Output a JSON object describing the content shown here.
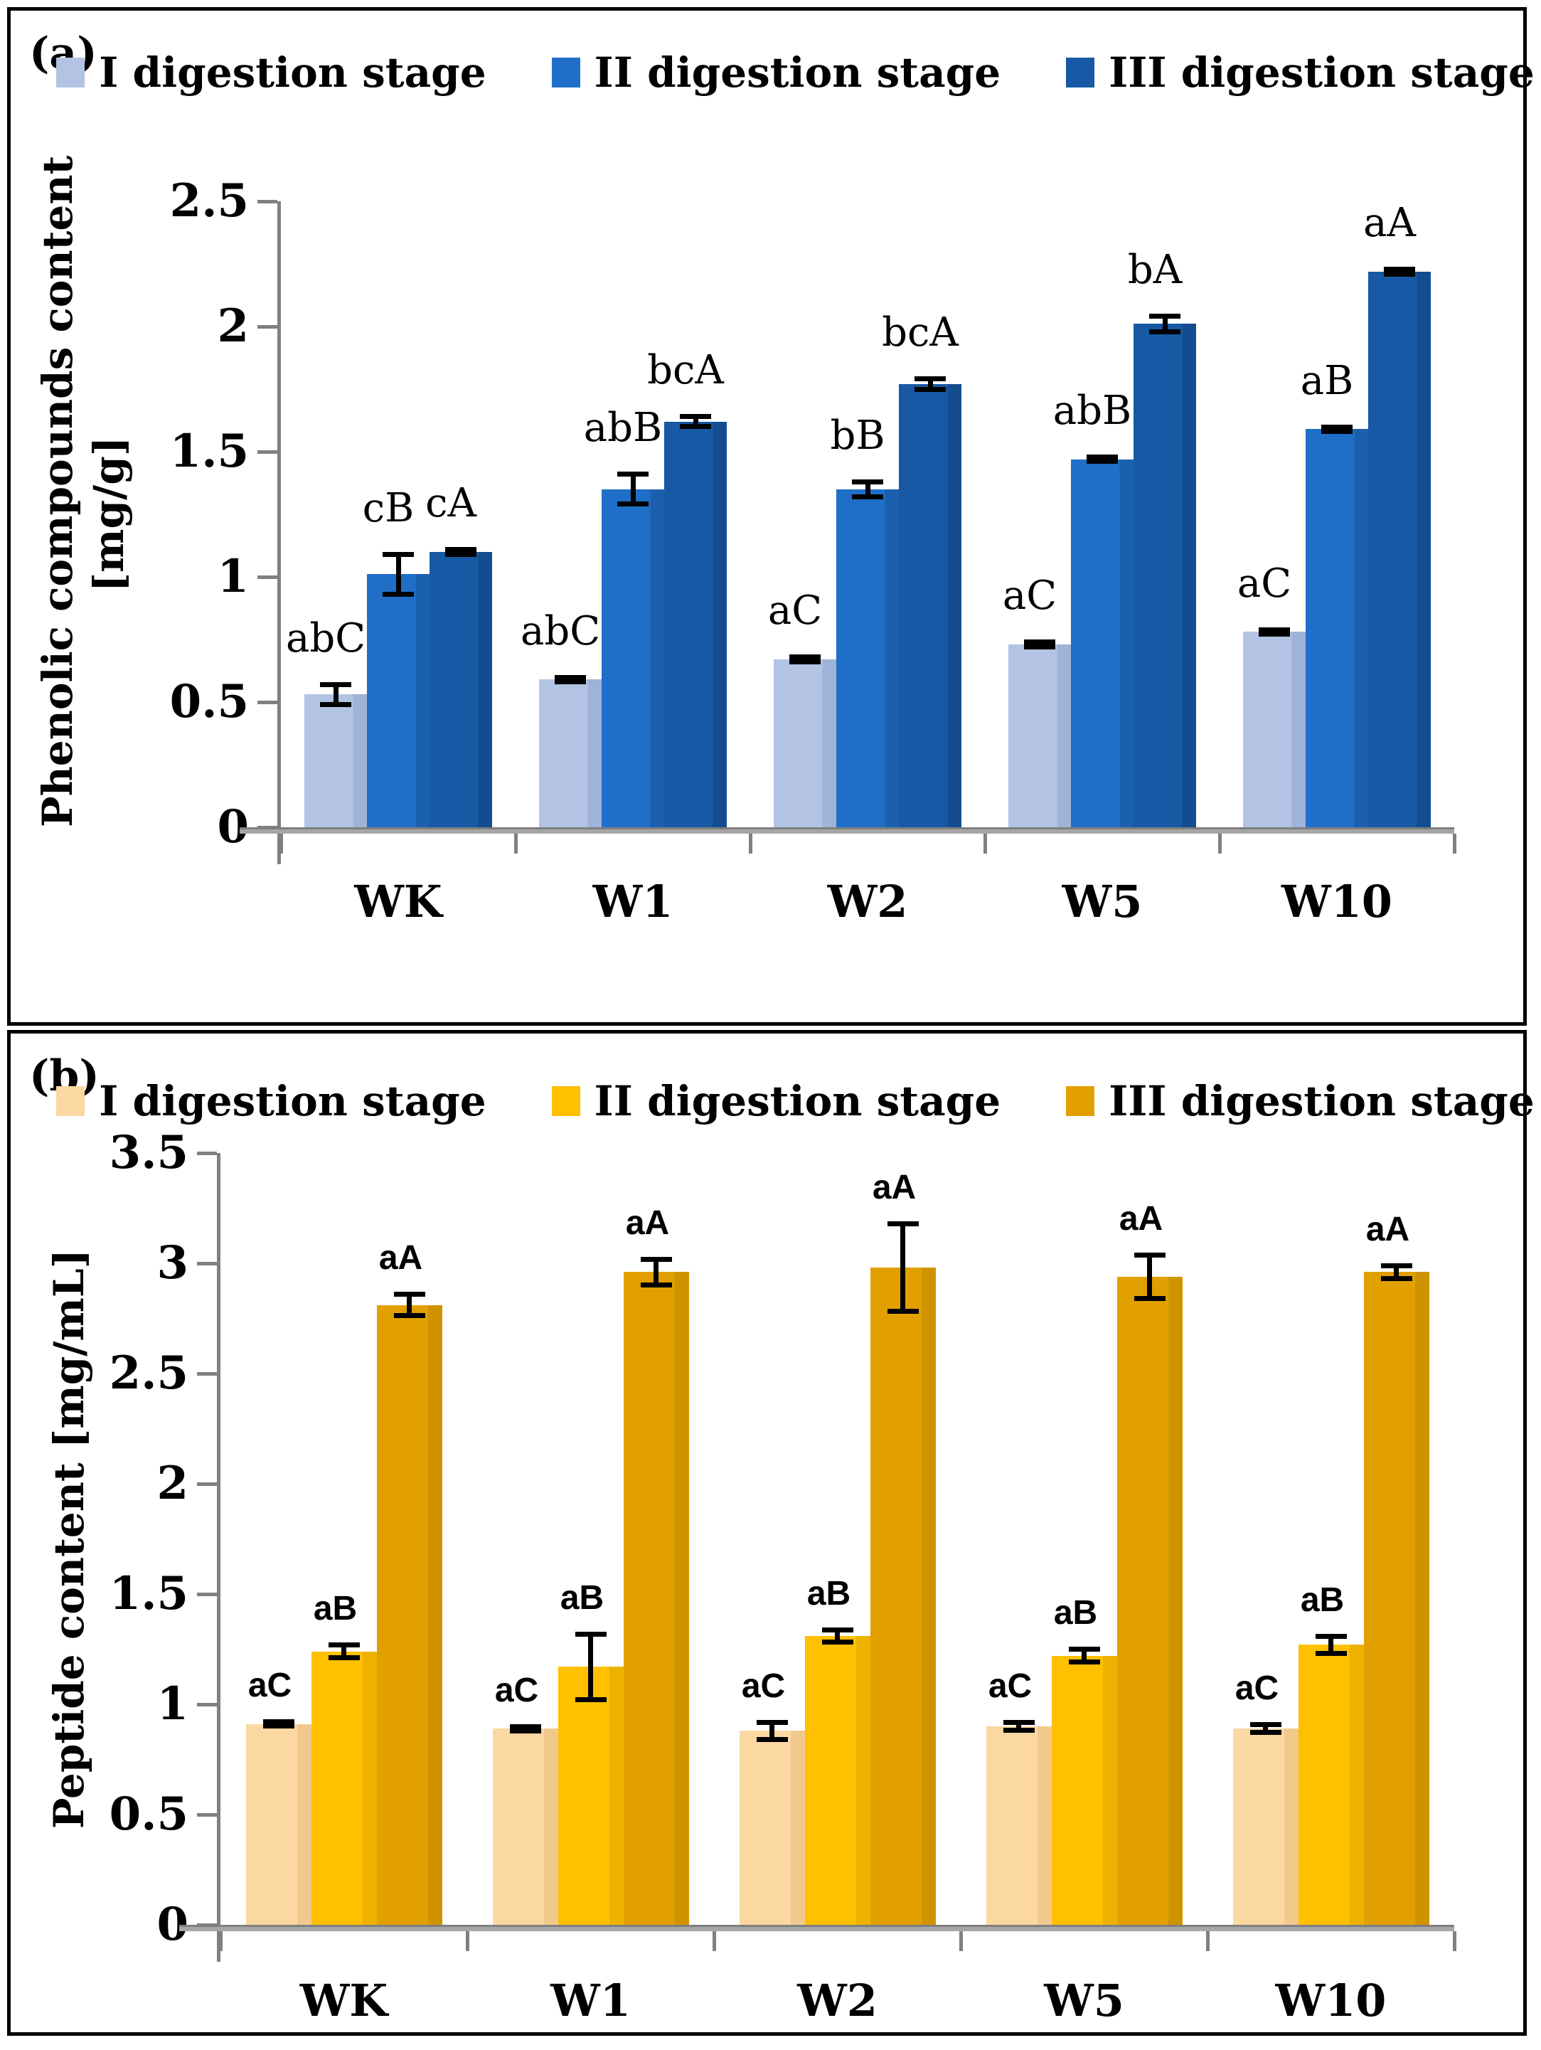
{
  "figure": {
    "panels": [
      {
        "tag": "(a)"
      },
      {
        "tag": "(b)"
      }
    ]
  },
  "chart_data": [
    {
      "type": "bar",
      "panel": "(a)",
      "title": "",
      "xlabel": "",
      "ylabel": "Phenolic compounds content [mg/g]",
      "ylabel_lines": [
        "Phenolic compounds content",
        "[mg/g]"
      ],
      "categories": [
        "WK",
        "W1",
        "W2",
        "W5",
        "W10"
      ],
      "ylim": [
        0,
        2.5
      ],
      "ytick_labels": [
        "0",
        "0.5",
        "1",
        "1.5",
        "2",
        "2.5"
      ],
      "grid": false,
      "legend_position": "top",
      "error_bars": true,
      "series": [
        {
          "name": "I digestion stage",
          "color": "#b3c3e3",
          "shade": "#9fb2d8",
          "values": [
            0.53,
            0.59,
            0.67,
            0.73,
            0.78
          ],
          "errors": [
            0.05,
            0.01,
            0.02,
            0.02,
            0.01
          ],
          "bar_labels": [
            "abC",
            "abC",
            "aC",
            "aC",
            "aC"
          ]
        },
        {
          "name": "II digestion stage",
          "color": "#1f6fc8",
          "shade": "#1a60ae",
          "values": [
            1.01,
            1.35,
            1.35,
            1.47,
            1.59
          ],
          "errors": [
            0.09,
            0.07,
            0.04,
            0.01,
            0.01
          ],
          "bar_labels": [
            "cB",
            "abB",
            "bB",
            "abB",
            "aB"
          ]
        },
        {
          "name": "III digestion stage",
          "color": "#1759a4",
          "shade": "#144d8f",
          "values": [
            1.1,
            1.62,
            1.77,
            2.01,
            2.22
          ],
          "errors": [
            0.02,
            0.03,
            0.03,
            0.04,
            0.02
          ],
          "bar_labels": [
            "cA",
            "bcA",
            "bcA",
            "bA",
            "aA"
          ]
        }
      ]
    },
    {
      "type": "bar",
      "panel": "(b)",
      "title": "",
      "xlabel": "",
      "ylabel": "Peptide content [mg/mL]",
      "ylabel_lines": [
        "Peptide content [mg/mL]"
      ],
      "categories": [
        "WK",
        "W1",
        "W2",
        "W5",
        "W10"
      ],
      "ylim": [
        0,
        3.5
      ],
      "ytick_labels": [
        "0",
        "0.5",
        "1",
        "1.5",
        "2",
        "2.5",
        "3",
        "3.5"
      ],
      "grid": false,
      "legend_position": "top",
      "error_bars": true,
      "series": [
        {
          "name": "I digestion stage",
          "color": "#fbd8a2",
          "shade": "#f2c98c",
          "values": [
            0.91,
            0.89,
            0.88,
            0.9,
            0.89
          ],
          "errors": [
            0.02,
            0.02,
            0.05,
            0.03,
            0.03
          ],
          "bar_labels": [
            "aC",
            "aC",
            "aC",
            "aC",
            "aC"
          ]
        },
        {
          "name": "II digestion stage",
          "color": "#ffc000",
          "shade": "#edb200",
          "values": [
            1.24,
            1.17,
            1.31,
            1.22,
            1.27
          ],
          "errors": [
            0.04,
            0.16,
            0.04,
            0.04,
            0.05
          ],
          "bar_labels": [
            "aB",
            "aB",
            "aB",
            "aB",
            "aB"
          ]
        },
        {
          "name": "III digestion stage",
          "color": "#e2a000",
          "shade": "#d09300",
          "values": [
            2.81,
            2.96,
            2.98,
            2.94,
            2.96
          ],
          "errors": [
            0.06,
            0.07,
            0.21,
            0.11,
            0.04
          ],
          "bar_labels": [
            "aA",
            "aA",
            "aA",
            "aA",
            "aA"
          ]
        }
      ]
    }
  ]
}
